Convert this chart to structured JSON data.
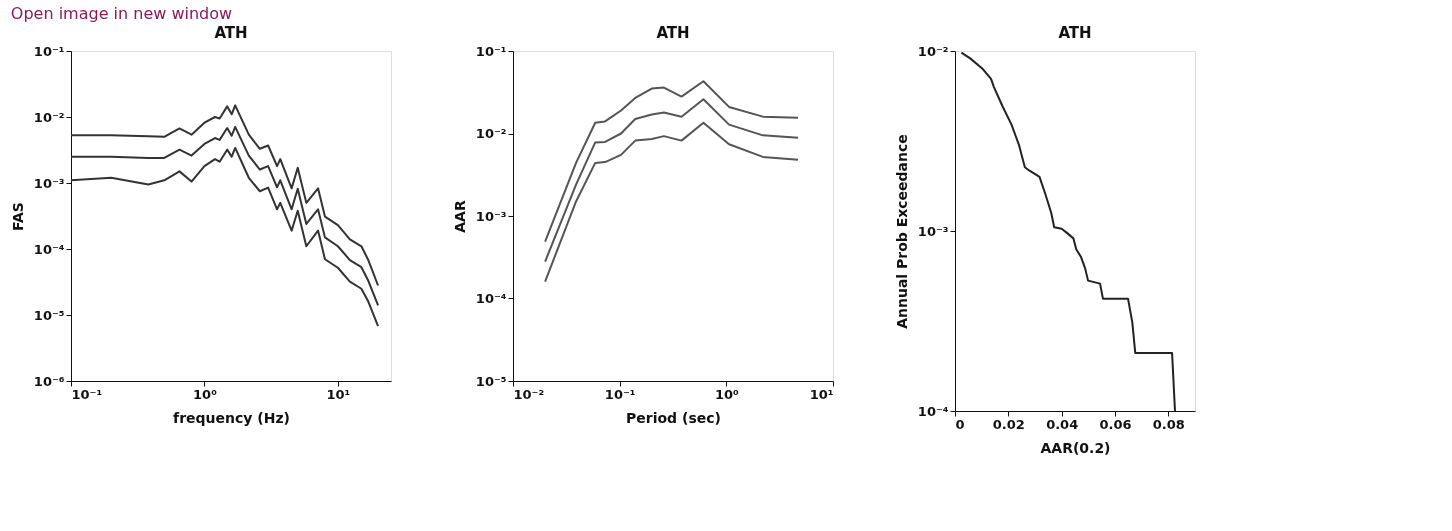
{
  "chart_data": [
    {
      "type": "line",
      "title": "ATH",
      "xlabel": "frequency (Hz)",
      "ylabel": "FAS",
      "log": "xy",
      "grid": false,
      "annotations": [
        "Open image in new window"
      ],
      "xlim": [
        0.1,
        25
      ],
      "ylim": [
        1e-06,
        0.1
      ],
      "xticks": [
        {
          "value": 0.1,
          "label": "10⁻¹"
        },
        {
          "value": 1,
          "label": "10⁰"
        },
        {
          "value": 10,
          "label": "10¹"
        }
      ],
      "yticks": [
        {
          "value": 1e-06,
          "label": "10⁻⁶"
        },
        {
          "value": 1e-05,
          "label": "10⁻⁵"
        },
        {
          "value": 0.0001,
          "label": "10⁻⁴"
        },
        {
          "value": 0.001,
          "label": "10⁻³"
        },
        {
          "value": 0.01,
          "label": "10⁻²"
        },
        {
          "value": 0.1,
          "label": "10⁻¹"
        }
      ],
      "x": [
        0.1,
        0.2,
        0.38,
        0.5,
        0.65,
        0.8,
        1.0,
        1.2,
        1.3,
        1.48,
        1.6,
        1.7,
        2.15,
        2.6,
        3.0,
        3.5,
        3.7,
        4.5,
        5.0,
        5.8,
        7.1,
        8.0,
        10,
        12.3,
        15,
        16.9,
        20
      ],
      "series": [
        {
          "color": "#333333",
          "values": [
            0.0053,
            0.0053,
            0.0051,
            0.005,
            0.0067,
            0.0054,
            0.0082,
            0.01,
            0.0095,
            0.0145,
            0.011,
            0.015,
            0.0054,
            0.0033,
            0.0037,
            0.0018,
            0.0023,
            0.00083,
            0.0017,
            0.0005,
            0.00083,
            0.00031,
            0.00023,
            0.00014,
            0.00011,
            6.8e-05,
            2.8e-05
          ]
        },
        {
          "color": "#333333",
          "values": [
            0.0025,
            0.0025,
            0.0024,
            0.0024,
            0.0032,
            0.0026,
            0.0039,
            0.0048,
            0.0045,
            0.0068,
            0.0052,
            0.0071,
            0.0026,
            0.0016,
            0.0018,
            0.00086,
            0.0011,
            0.0004,
            0.00082,
            0.00024,
            0.0004,
            0.00015,
            0.00011,
            6.8e-05,
            5.3e-05,
            3.3e-05,
            1.4e-05
          ]
        },
        {
          "color": "#333333",
          "values": [
            0.0011,
            0.0012,
            0.00095,
            0.0011,
            0.0015,
            0.00105,
            0.0018,
            0.0023,
            0.0021,
            0.0032,
            0.0025,
            0.0034,
            0.0012,
            0.00075,
            0.00085,
            0.0004,
            0.0005,
            0.00019,
            0.00038,
            0.00011,
            0.00019,
            7e-05,
            5.2e-05,
            3.2e-05,
            2.5e-05,
            1.6e-05,
            6.8e-06
          ]
        }
      ]
    },
    {
      "type": "line",
      "title": "ATH",
      "xlabel": "Period (sec)",
      "ylabel": "AAR",
      "log": "xy",
      "grid": false,
      "xlim": [
        0.01,
        10
      ],
      "ylim": [
        1e-05,
        0.1
      ],
      "xticks": [
        {
          "value": 0.01,
          "label": "10⁻²"
        },
        {
          "value": 0.1,
          "label": "10⁻¹"
        },
        {
          "value": 1,
          "label": "10⁰"
        },
        {
          "value": 10,
          "label": "10¹"
        }
      ],
      "yticks": [
        {
          "value": 1e-05,
          "label": "10⁻⁵"
        },
        {
          "value": 0.0001,
          "label": "10⁻⁴"
        },
        {
          "value": 0.001,
          "label": "10⁻³"
        },
        {
          "value": 0.01,
          "label": "10⁻²"
        },
        {
          "value": 0.1,
          "label": "10⁻¹"
        }
      ],
      "x": [
        0.02,
        0.039,
        0.059,
        0.073,
        0.103,
        0.14,
        0.2,
        0.26,
        0.38,
        0.61,
        1.06,
        2.2,
        4.7
      ],
      "series": [
        {
          "color": "#555555",
          "values": [
            0.00049,
            0.0044,
            0.0135,
            0.014,
            0.019,
            0.027,
            0.035,
            0.036,
            0.028,
            0.043,
            0.021,
            0.016,
            0.0155
          ]
        },
        {
          "color": "#555555",
          "values": [
            0.00028,
            0.0024,
            0.0078,
            0.0079,
            0.01,
            0.015,
            0.017,
            0.018,
            0.016,
            0.026,
            0.0128,
            0.0095,
            0.0089
          ]
        },
        {
          "color": "#555555",
          "values": [
            0.00016,
            0.0015,
            0.0044,
            0.0045,
            0.0055,
            0.0082,
            0.0086,
            0.0093,
            0.0082,
            0.0135,
            0.0074,
            0.0052,
            0.0048
          ]
        }
      ]
    },
    {
      "type": "line",
      "title": "ATH",
      "xlabel": "AAR(0.2)",
      "ylabel": "Annual Prob Exceedance",
      "log": "y",
      "grid": false,
      "xlim": [
        0,
        0.09
      ],
      "ylim": [
        0.0001,
        0.01
      ],
      "xticks": [
        0,
        0.02,
        0.04,
        0.06,
        0.08
      ],
      "yticks": [
        {
          "value": 0.0001,
          "label": "10⁻⁴"
        },
        {
          "value": 0.001,
          "label": "10⁻³"
        },
        {
          "value": 0.01,
          "label": "10⁻²"
        }
      ],
      "x": [
        0.0024,
        0.0057,
        0.0102,
        0.0135,
        0.0146,
        0.0179,
        0.0212,
        0.024,
        0.0262,
        0.0278,
        0.0317,
        0.0339,
        0.0361,
        0.0372,
        0.04,
        0.0422,
        0.0444,
        0.0455,
        0.0472,
        0.0488,
        0.0499,
        0.0544,
        0.0555,
        0.0649,
        0.0665,
        0.0676,
        0.0814,
        0.0825
      ],
      "series": [
        {
          "color": "#222222",
          "values": [
            0.0098,
            0.0091,
            0.008,
            0.007,
            0.0063,
            0.0049,
            0.0039,
            0.003,
            0.00226,
            0.00217,
            0.002,
            0.0016,
            0.00126,
            0.00105,
            0.00103,
            0.00097,
            0.00091,
            0.00079,
            0.00072,
            0.00062,
            0.00053,
            0.00051,
            0.00042,
            0.00042,
            0.00031,
            0.00021,
            0.00021,
            0.0001
          ]
        }
      ]
    }
  ]
}
